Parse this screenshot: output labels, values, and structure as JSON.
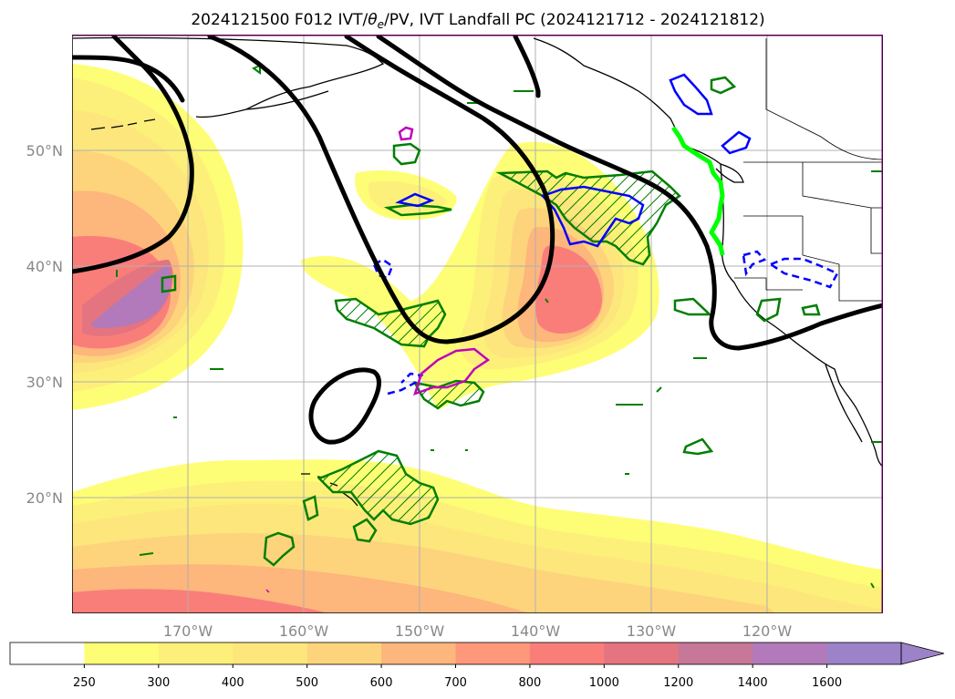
{
  "figure": {
    "title_prefix": "2024121500 F012 IVT/",
    "title_symbol": "θ",
    "title_subscript": "e",
    "title_suffix": "/PV, IVT Landfall PC (2024121712 - 2024121812)"
  },
  "map": {
    "lon_range": [
      -180,
      -110
    ],
    "lat_range": [
      10,
      60
    ],
    "lat_ticks": [
      {
        "value": 50,
        "label": "50°N"
      },
      {
        "value": 40,
        "label": "40°N"
      },
      {
        "value": 30,
        "label": "30°N"
      },
      {
        "value": 20,
        "label": "20°N"
      }
    ],
    "lon_ticks": [
      {
        "value": -170,
        "label": "170°W"
      },
      {
        "value": -160,
        "label": "160°W"
      },
      {
        "value": -150,
        "label": "150°W"
      },
      {
        "value": -140,
        "label": "140°W"
      },
      {
        "value": -130,
        "label": "130°W"
      },
      {
        "value": -120,
        "label": "120°W"
      }
    ],
    "grid": true
  },
  "colorbar": {
    "levels": [
      "250",
      "300",
      "400",
      "500",
      "600",
      "700",
      "800",
      "1000",
      "1200",
      "1400",
      "1600"
    ],
    "colors": [
      "#ffffff",
      "#fefe76",
      "#fdf07a",
      "#fde67c",
      "#fdd47c",
      "#fdb67c",
      "#fd997a",
      "#f97e7a",
      "#e47480",
      "#c77898",
      "#b27aba",
      "#9c82c8"
    ],
    "extend": "max"
  },
  "colors": {
    "theta_e_contour": "#000000",
    "pv_positive": "#007f00",
    "pv_negative": "#0000ff",
    "pv_high": "#c000c0",
    "landfall_line": "#00ff00"
  }
}
